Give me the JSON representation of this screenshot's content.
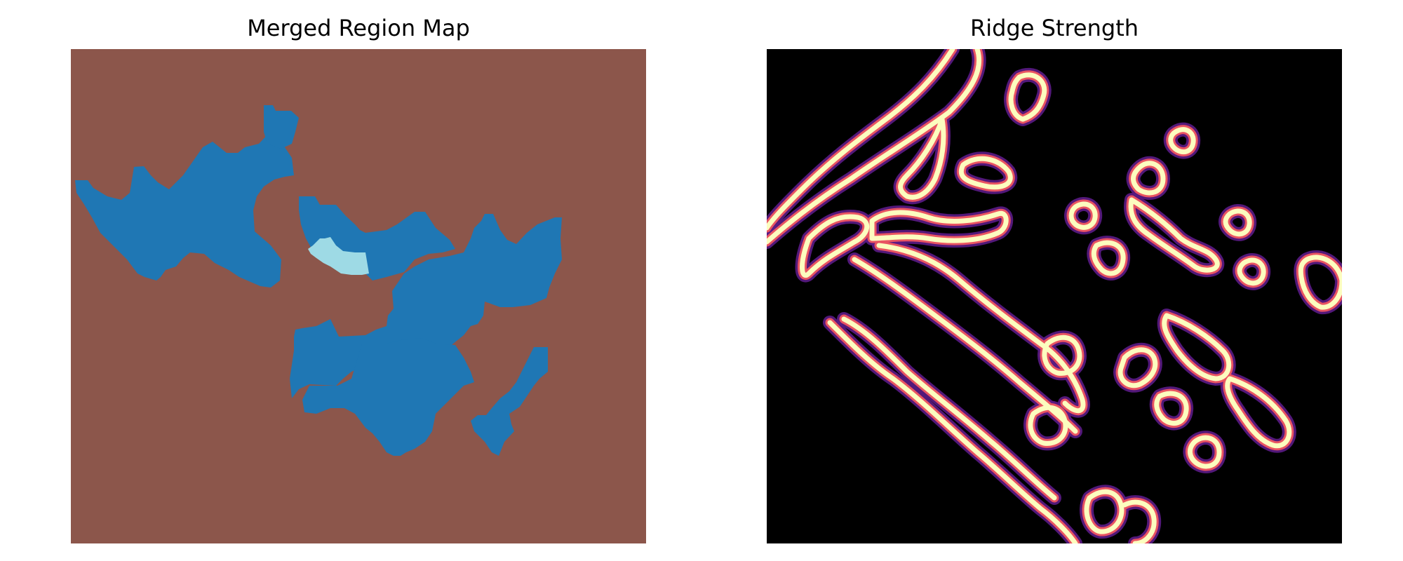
{
  "figure": {
    "left": {
      "title": "Merged Region Map",
      "colors": {
        "background": "#8c564b",
        "region": "#1f77b4",
        "highlight": "#9edae5"
      }
    },
    "right": {
      "title": "Ridge Strength",
      "colors": {
        "background": "#000000",
        "outer_glow": "#5b1b86",
        "mid": "#e95462",
        "core": "#fcfdbf"
      }
    }
  }
}
